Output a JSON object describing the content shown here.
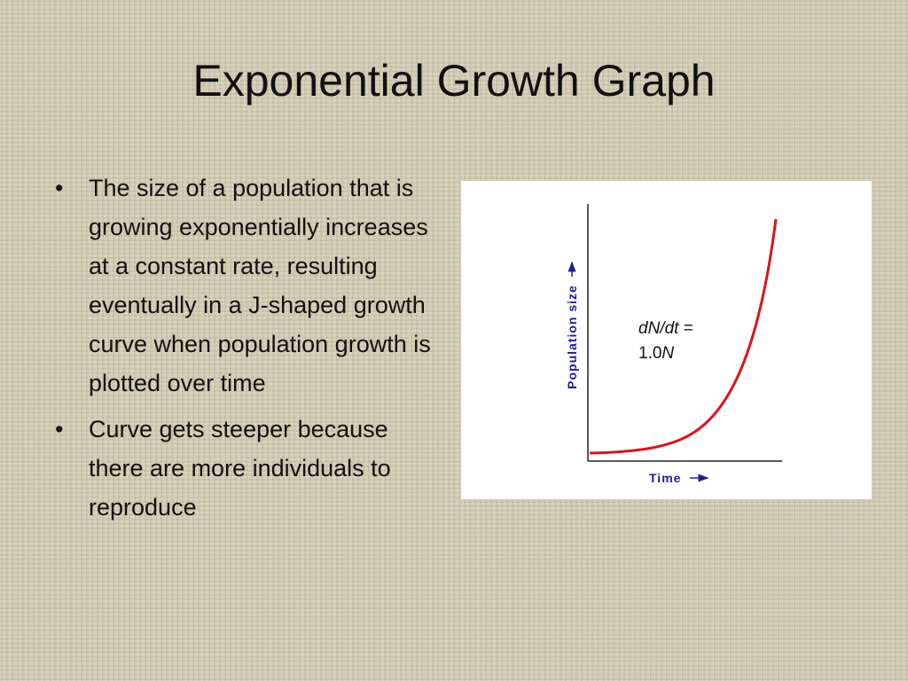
{
  "title": "Exponential Growth Graph",
  "bullets": [
    "The size of a population that is growing exponentially increases at a constant rate, resulting eventually in a J-shaped growth curve when population growth is plotted over time",
    "Curve gets steeper because there are more individuals to reproduce"
  ],
  "figure": {
    "y_label": "Population size",
    "x_label": "Time",
    "equation": {
      "lhs": "dN/dt",
      "op": "=",
      "rate": "1.0",
      "var": "N"
    }
  }
}
